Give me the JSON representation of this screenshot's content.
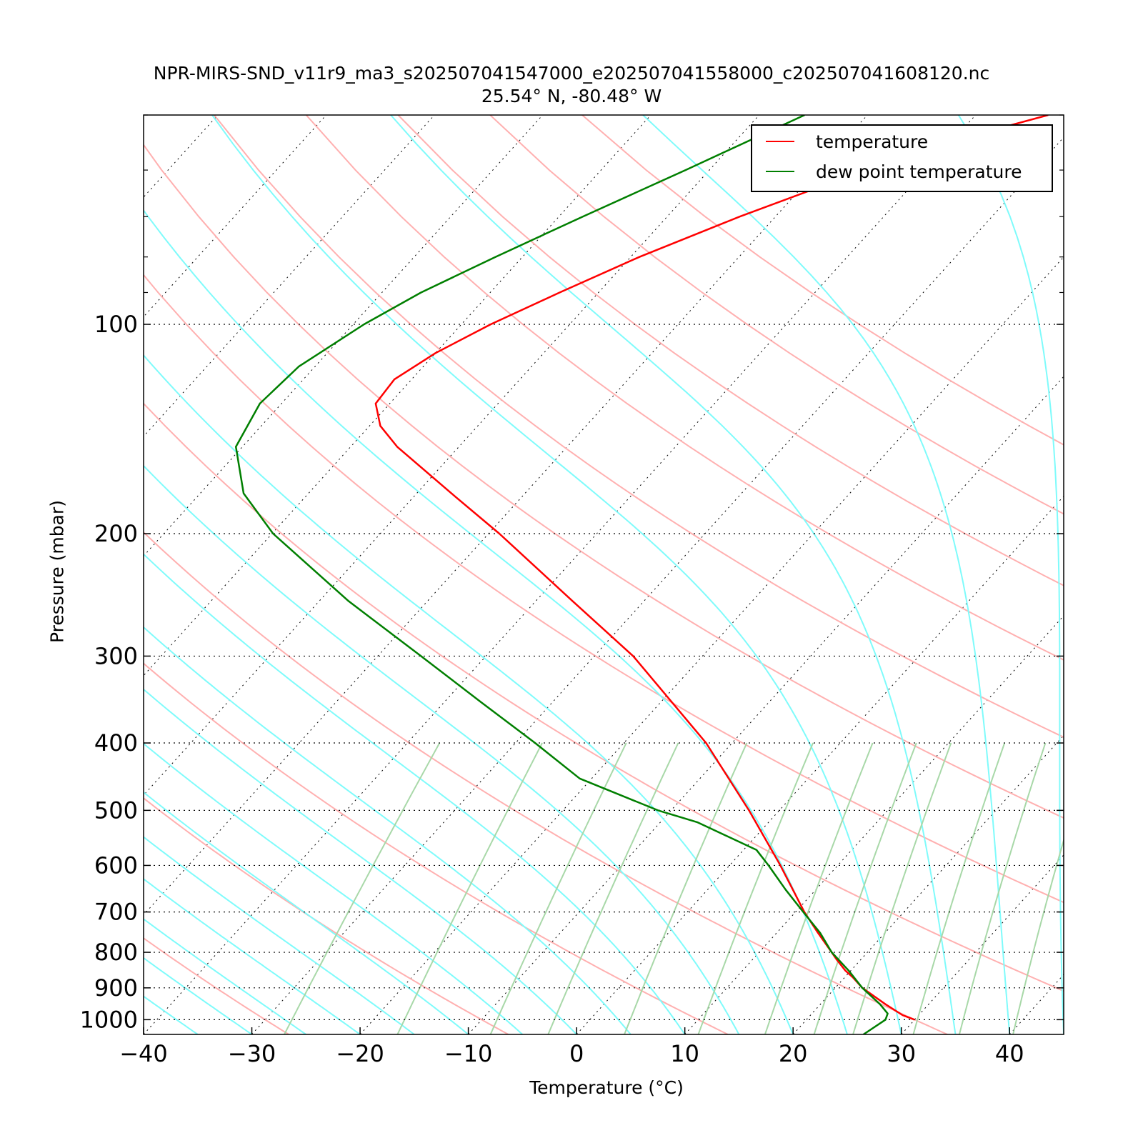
{
  "title": "NPR-MIRS-SND_v11r9_ma3_s202507041547000_e202507041558000_c202507041608120.nc",
  "subtitle": "25.54° N, -80.48° W",
  "chart_data": {
    "type": "line",
    "title": "NPR-MIRS-SND_v11r9_ma3_s202507041547000_e202507041558000_c202507041608120.nc",
    "subtitle": "25.54° N, -80.48° W",
    "xlabel": "Temperature (°C)",
    "ylabel": "Pressure (mbar)",
    "xlim": [
      -40,
      45
    ],
    "ylim": [
      1050,
      50
    ],
    "y_scale": "log",
    "x_ticks": [
      -40,
      -30,
      -20,
      -10,
      0,
      10,
      20,
      30,
      40
    ],
    "x_tick_labels": [
      "−40",
      "−30",
      "−20",
      "−10",
      "0",
      "10",
      "20",
      "30",
      "40"
    ],
    "y_ticks": [
      100,
      200,
      300,
      400,
      500,
      600,
      700,
      800,
      900,
      1000
    ],
    "y_tick_labels": [
      "100",
      "200",
      "300",
      "400",
      "500",
      "600",
      "700",
      "800",
      "900",
      "1000"
    ],
    "grid": "dotted horizontal lines at labeled pressures",
    "skew": "skew-T diagram with dry adiabats, moist adiabats, mixing-ratio lines and dotted isotherms",
    "legend": {
      "position": "top-right",
      "entries": [
        {
          "label": "temperature",
          "color": "#ff0000"
        },
        {
          "label": "dew point temperature",
          "color": "#007f00"
        }
      ]
    },
    "series": [
      {
        "name": "temperature",
        "color": "#ff0000",
        "points": [
          {
            "p": 1000,
            "t": 30.0
          },
          {
            "p": 985,
            "t": 28.5
          },
          {
            "p": 950,
            "t": 26.0
          },
          {
            "p": 900,
            "t": 22.5
          },
          {
            "p": 870,
            "t": 20.8
          },
          {
            "p": 850,
            "t": 19.5
          },
          {
            "p": 820,
            "t": 17.8
          },
          {
            "p": 800,
            "t": 16.7
          },
          {
            "p": 750,
            "t": 13.8
          },
          {
            "p": 700,
            "t": 10.8
          },
          {
            "p": 600,
            "t": 4.7
          },
          {
            "p": 500,
            "t": -2.8
          },
          {
            "p": 400,
            "t": -12.4
          },
          {
            "p": 300,
            "t": -26.4
          },
          {
            "p": 250,
            "t": -36.6
          },
          {
            "p": 200,
            "t": -49.0
          },
          {
            "p": 175,
            "t": -56.8
          },
          {
            "p": 150,
            "t": -65.7
          },
          {
            "p": 140,
            "t": -69.0
          },
          {
            "p": 130,
            "t": -71.3
          },
          {
            "p": 120,
            "t": -71.6
          },
          {
            "p": 110,
            "t": -70.0
          },
          {
            "p": 100,
            "t": -67.3
          },
          {
            "p": 90,
            "t": -63.6
          },
          {
            "p": 80,
            "t": -59.2
          },
          {
            "p": 70,
            "t": -53.3
          },
          {
            "p": 60,
            "t": -45.6
          },
          {
            "p": 55,
            "t": -40.7
          },
          {
            "p": 50,
            "t": -33.3
          }
        ]
      },
      {
        "name": "dew point temperature",
        "color": "#007f00",
        "points": [
          {
            "p": 1050,
            "t": 26.5
          },
          {
            "p": 1000,
            "t": 27.3
          },
          {
            "p": 980,
            "t": 27.0
          },
          {
            "p": 950,
            "t": 25.5
          },
          {
            "p": 900,
            "t": 22.5
          },
          {
            "p": 850,
            "t": 19.8
          },
          {
            "p": 800,
            "t": 16.7
          },
          {
            "p": 750,
            "t": 14.0
          },
          {
            "p": 700,
            "t": 10.7
          },
          {
            "p": 650,
            "t": 7.2
          },
          {
            "p": 600,
            "t": 3.6
          },
          {
            "p": 570,
            "t": 1.2
          },
          {
            "p": 520,
            "t": -6.6
          },
          {
            "p": 500,
            "t": -11.2
          },
          {
            "p": 450,
            "t": -21.1
          },
          {
            "p": 400,
            "t": -28.2
          },
          {
            "p": 350,
            "t": -36.5
          },
          {
            "p": 300,
            "t": -46.0
          },
          {
            "p": 250,
            "t": -57.3
          },
          {
            "p": 200,
            "t": -69.9
          },
          {
            "p": 175,
            "t": -76.0
          },
          {
            "p": 150,
            "t": -80.6
          },
          {
            "p": 130,
            "t": -82.0
          },
          {
            "p": 115,
            "t": -81.5
          },
          {
            "p": 100,
            "t": -79.0
          },
          {
            "p": 90,
            "t": -76.4
          },
          {
            "p": 80,
            "t": -72.5
          },
          {
            "p": 70,
            "t": -67.8
          },
          {
            "p": 60,
            "t": -62.2
          },
          {
            "p": 50,
            "t": -55.8
          }
        ]
      }
    ]
  }
}
